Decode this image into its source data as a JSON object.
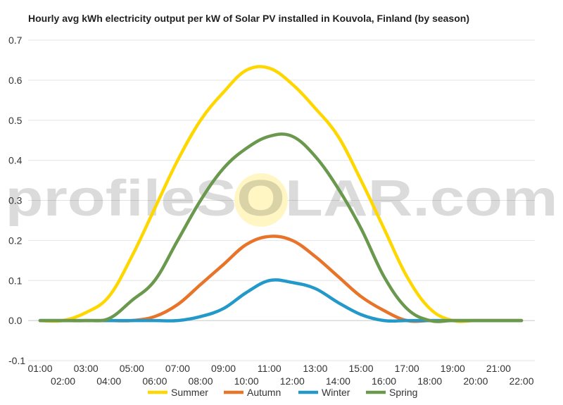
{
  "chart_data": {
    "type": "line",
    "title": "Hourly avg kWh electricity output per kW of Solar PV installed in Kouvola, Finland (by season)",
    "xlabel": "",
    "ylabel": "",
    "x": [
      "01:00",
      "02:00",
      "03:00",
      "04:00",
      "05:00",
      "06:00",
      "07:00",
      "08:00",
      "09:00",
      "10:00",
      "11:00",
      "12:00",
      "13:00",
      "14:00",
      "15:00",
      "16:00",
      "17:00",
      "18:00",
      "19:00",
      "20:00",
      "21:00",
      "22:00"
    ],
    "ylim": [
      -0.1,
      0.7
    ],
    "yticks": [
      "0.7",
      "0.6",
      "0.5",
      "0.4",
      "0.3",
      "0.2",
      "0.1",
      "0.0",
      "-0.1"
    ],
    "grid": true,
    "legend_position": "bottom",
    "series": [
      {
        "name": "Summer",
        "color": "#FFD700",
        "values": [
          0.0,
          0.0,
          0.02,
          0.06,
          0.16,
          0.28,
          0.4,
          0.5,
          0.57,
          0.625,
          0.63,
          0.59,
          0.53,
          0.46,
          0.35,
          0.23,
          0.11,
          0.03,
          0.0,
          0.0,
          0.0,
          0.0
        ]
      },
      {
        "name": "Autumn",
        "color": "#E8742A",
        "values": [
          0.0,
          0.0,
          0.0,
          0.0,
          0.0,
          0.01,
          0.04,
          0.09,
          0.14,
          0.19,
          0.21,
          0.2,
          0.16,
          0.11,
          0.06,
          0.025,
          0.0,
          0.0,
          0.0,
          0.0,
          0.0,
          0.0
        ]
      },
      {
        "name": "Winter",
        "color": "#2399C9",
        "values": [
          0.0,
          0.0,
          0.0,
          0.0,
          0.0,
          0.0,
          0.0,
          0.01,
          0.03,
          0.07,
          0.1,
          0.095,
          0.08,
          0.045,
          0.015,
          0.0,
          0.0,
          0.0,
          0.0,
          0.0,
          0.0,
          0.0
        ]
      },
      {
        "name": "Spring",
        "color": "#6A994E",
        "values": [
          0.0,
          0.0,
          0.0,
          0.005,
          0.05,
          0.1,
          0.2,
          0.3,
          0.38,
          0.43,
          0.46,
          0.46,
          0.41,
          0.33,
          0.23,
          0.11,
          0.03,
          0.0,
          0.0,
          0.0,
          0.0,
          0.0
        ]
      }
    ],
    "watermark": "profileSOLAR.com"
  }
}
